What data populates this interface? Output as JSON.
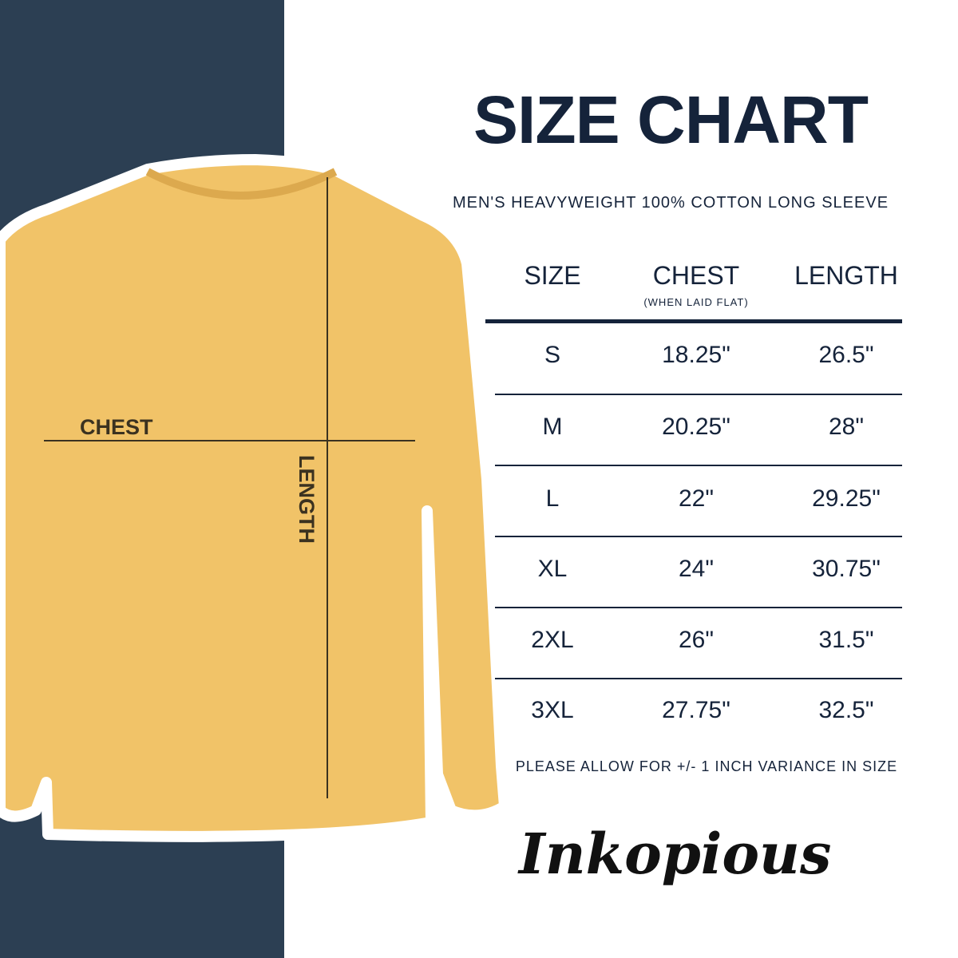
{
  "title": "SIZE CHART",
  "subtitle": "MEN'S HEAVYWEIGHT 100% COTTON LONG SLEEVE",
  "table": {
    "headers": [
      "SIZE",
      "CHEST",
      "LENGTH"
    ],
    "chest_note": "(WHEN LAID FLAT)",
    "rows": [
      [
        "S",
        "18.25\"",
        "26.5\""
      ],
      [
        "M",
        "20.25\"",
        "28\""
      ],
      [
        "L",
        "22\"",
        "29.25\""
      ],
      [
        "XL",
        "24\"",
        "30.75\""
      ],
      [
        "2XL",
        "26\"",
        "31.5\""
      ],
      [
        "3XL",
        "27.75\"",
        "32.5\""
      ]
    ]
  },
  "note": "PLEASE ALLOW FOR +/- 1 INCH VARIANCE IN SIZE",
  "shirt": {
    "chest_label": "CHEST",
    "length_label": "LENGTH",
    "color": "#f1c368"
  },
  "logo": "Inkopious",
  "colors": {
    "navy": "#15233a",
    "panel": "#2c3f53"
  }
}
